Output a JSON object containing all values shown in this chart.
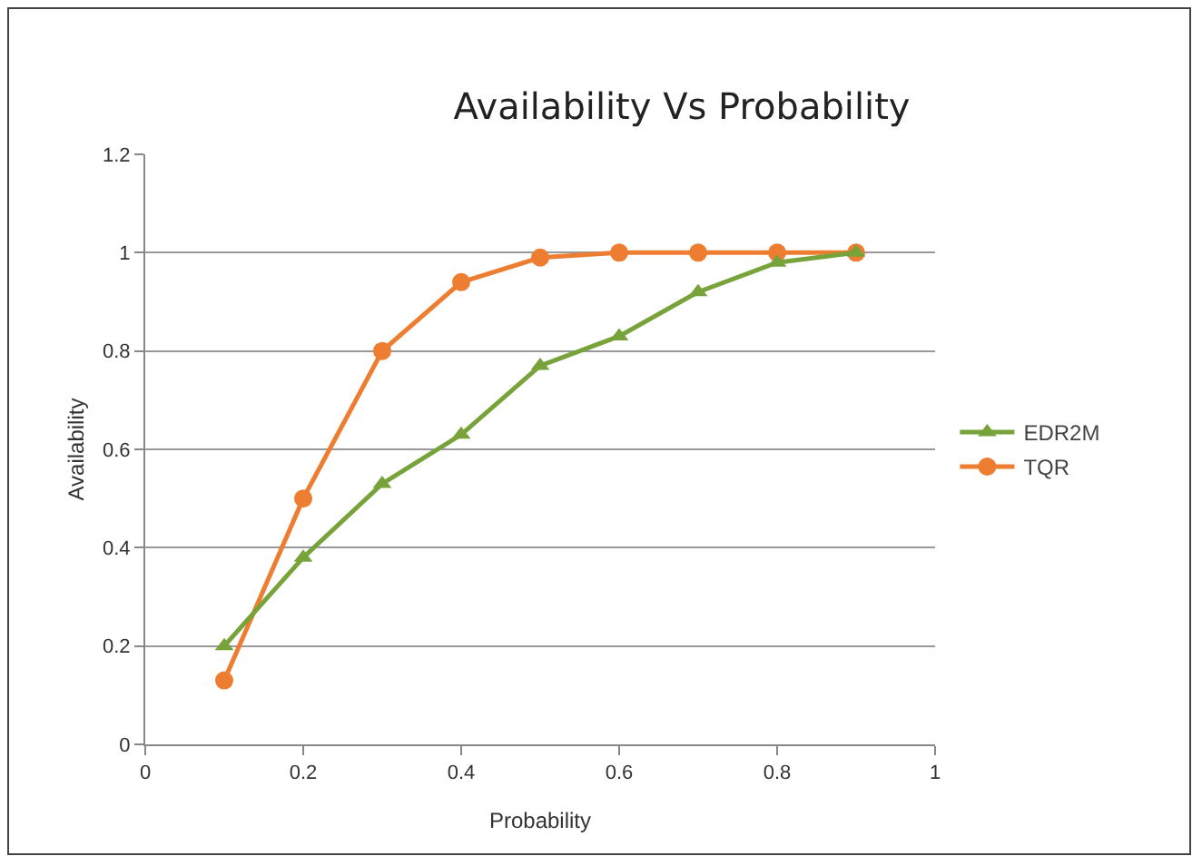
{
  "chart_data": {
    "type": "line",
    "title": "Availability Vs Probability",
    "xlabel": "Probability",
    "ylabel": "Availability",
    "x": [
      0.1,
      0.2,
      0.3,
      0.4,
      0.5,
      0.6,
      0.7,
      0.8,
      0.9
    ],
    "series": [
      {
        "name": "EDR2M",
        "color": "#77a33a",
        "marker": "triangle",
        "values": [
          0.2,
          0.38,
          0.53,
          0.63,
          0.77,
          0.83,
          0.92,
          0.98,
          1.0
        ]
      },
      {
        "name": "TQR",
        "color": "#ed7d31",
        "marker": "circle",
        "values": [
          0.13,
          0.5,
          0.8,
          0.94,
          0.99,
          1.0,
          1.0,
          1.0,
          1.0
        ]
      }
    ],
    "xlim": [
      0,
      1
    ],
    "xticks": [
      0,
      0.2,
      0.4,
      0.6,
      0.8,
      1
    ],
    "ylim": [
      0,
      1.2
    ],
    "yticks": [
      0,
      0.2,
      0.4,
      0.6,
      0.8,
      1,
      1.2
    ],
    "grid": "y",
    "legend": "right",
    "line_style": "solid"
  }
}
